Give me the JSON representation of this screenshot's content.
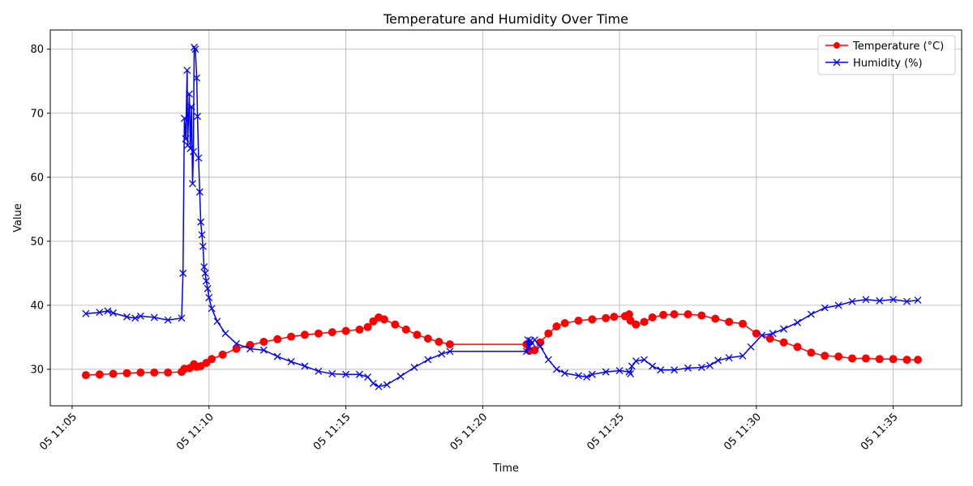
{
  "chart_data": {
    "type": "line",
    "title": "Temperature and Humidity Over Time",
    "xlabel": "Time",
    "ylabel": "Value",
    "x_unit": "minutes after 11:00 on day 05",
    "xlim": [
      4.2,
      37.5
    ],
    "ylim": [
      24.3,
      83.0
    ],
    "x_ticks": [
      {
        "value": 5,
        "label": "05 11:05"
      },
      {
        "value": 10,
        "label": "05 11:10"
      },
      {
        "value": 15,
        "label": "05 11:15"
      },
      {
        "value": 20,
        "label": "05 11:20"
      },
      {
        "value": 25,
        "label": "05 11:25"
      },
      {
        "value": 30,
        "label": "05 11:30"
      },
      {
        "value": 35,
        "label": "05 11:35"
      }
    ],
    "y_ticks": [
      30,
      40,
      50,
      60,
      70,
      80
    ],
    "grid": true,
    "legend_position": "top-right",
    "series": [
      {
        "name": "Temperature (°C)",
        "color": "#ff0000",
        "marker": "circle",
        "points": [
          [
            5.5,
            29.1
          ],
          [
            6.0,
            29.2
          ],
          [
            6.5,
            29.3
          ],
          [
            7.0,
            29.4
          ],
          [
            7.5,
            29.5
          ],
          [
            8.0,
            29.5
          ],
          [
            8.5,
            29.5
          ],
          [
            9.0,
            29.6
          ],
          [
            9.1,
            30.1
          ],
          [
            9.3,
            30.2
          ],
          [
            9.45,
            30.8
          ],
          [
            9.55,
            30.4
          ],
          [
            9.7,
            30.5
          ],
          [
            9.9,
            31.0
          ],
          [
            10.1,
            31.6
          ],
          [
            10.5,
            32.3
          ],
          [
            11.0,
            33.2
          ],
          [
            11.5,
            33.8
          ],
          [
            12.0,
            34.3
          ],
          [
            12.5,
            34.7
          ],
          [
            13.0,
            35.1
          ],
          [
            13.5,
            35.4
          ],
          [
            14.0,
            35.6
          ],
          [
            14.5,
            35.8
          ],
          [
            15.0,
            36.0
          ],
          [
            15.5,
            36.2
          ],
          [
            15.8,
            36.6
          ],
          [
            16.0,
            37.5
          ],
          [
            16.2,
            38.1
          ],
          [
            16.4,
            37.8
          ],
          [
            16.8,
            37.0
          ],
          [
            17.2,
            36.2
          ],
          [
            17.6,
            35.4
          ],
          [
            18.0,
            34.8
          ],
          [
            18.4,
            34.3
          ],
          [
            18.8,
            33.9
          ],
          [
            21.6,
            33.9
          ],
          [
            21.7,
            32.9
          ],
          [
            21.9,
            33.0
          ],
          [
            22.1,
            34.2
          ],
          [
            22.4,
            35.6
          ],
          [
            22.7,
            36.7
          ],
          [
            23.0,
            37.2
          ],
          [
            23.5,
            37.6
          ],
          [
            24.0,
            37.8
          ],
          [
            24.5,
            38.0
          ],
          [
            24.8,
            38.2
          ],
          [
            25.2,
            38.3
          ],
          [
            25.35,
            38.6
          ],
          [
            25.4,
            37.6
          ],
          [
            25.6,
            37.0
          ],
          [
            25.9,
            37.4
          ],
          [
            26.2,
            38.1
          ],
          [
            26.6,
            38.5
          ],
          [
            27.0,
            38.6
          ],
          [
            27.5,
            38.6
          ],
          [
            28.0,
            38.4
          ],
          [
            28.5,
            37.9
          ],
          [
            29.0,
            37.4
          ],
          [
            29.5,
            37.1
          ],
          [
            30.0,
            35.6
          ],
          [
            30.5,
            34.8
          ],
          [
            31.0,
            34.2
          ],
          [
            31.5,
            33.5
          ],
          [
            32.0,
            32.6
          ],
          [
            32.5,
            32.1
          ],
          [
            33.0,
            32.0
          ],
          [
            33.5,
            31.7
          ],
          [
            34.0,
            31.7
          ],
          [
            34.5,
            31.6
          ],
          [
            35.0,
            31.6
          ],
          [
            35.5,
            31.5
          ],
          [
            35.9,
            31.5
          ]
        ]
      },
      {
        "name": "Humidity (%)",
        "color": "#0000ff",
        "marker": "x",
        "points": [
          [
            5.5,
            38.7
          ],
          [
            6.0,
            38.9
          ],
          [
            6.3,
            39.1
          ],
          [
            6.5,
            38.8
          ],
          [
            7.0,
            38.2
          ],
          [
            7.3,
            38.0
          ],
          [
            7.5,
            38.3
          ],
          [
            8.0,
            38.1
          ],
          [
            8.5,
            37.7
          ],
          [
            9.0,
            38.0
          ],
          [
            9.05,
            45.0
          ],
          [
            9.1,
            69.2
          ],
          [
            9.15,
            66.0
          ],
          [
            9.2,
            76.7
          ],
          [
            9.22,
            65.0
          ],
          [
            9.28,
            73.0
          ],
          [
            9.32,
            64.5
          ],
          [
            9.36,
            71.0
          ],
          [
            9.4,
            59.0
          ],
          [
            9.43,
            64.0
          ],
          [
            9.46,
            80.3
          ],
          [
            9.5,
            80.0
          ],
          [
            9.55,
            75.5
          ],
          [
            9.58,
            69.5
          ],
          [
            9.62,
            63.0
          ],
          [
            9.66,
            57.7
          ],
          [
            9.7,
            53.0
          ],
          [
            9.74,
            51.0
          ],
          [
            9.78,
            49.2
          ],
          [
            9.82,
            46.0
          ],
          [
            9.86,
            45.0
          ],
          [
            9.9,
            43.8
          ],
          [
            9.95,
            42.6
          ],
          [
            10.0,
            41.2
          ],
          [
            10.1,
            39.5
          ],
          [
            10.3,
            37.5
          ],
          [
            10.6,
            35.6
          ],
          [
            11.0,
            34.0
          ],
          [
            11.5,
            33.2
          ],
          [
            12.0,
            33.0
          ],
          [
            12.5,
            32.0
          ],
          [
            13.0,
            31.2
          ],
          [
            13.5,
            30.5
          ],
          [
            14.0,
            29.7
          ],
          [
            14.5,
            29.3
          ],
          [
            15.0,
            29.2
          ],
          [
            15.5,
            29.2
          ],
          [
            15.8,
            28.8
          ],
          [
            16.0,
            27.8
          ],
          [
            16.2,
            27.3
          ],
          [
            16.5,
            27.6
          ],
          [
            17.0,
            28.9
          ],
          [
            17.5,
            30.3
          ],
          [
            18.0,
            31.5
          ],
          [
            18.5,
            32.4
          ],
          [
            18.8,
            32.8
          ],
          [
            21.6,
            32.8
          ],
          [
            21.65,
            34.6
          ],
          [
            21.7,
            33.5
          ],
          [
            21.75,
            34.5
          ],
          [
            21.8,
            34.1
          ],
          [
            21.9,
            34.6
          ],
          [
            22.1,
            33.6
          ],
          [
            22.4,
            31.5
          ],
          [
            22.7,
            30.0
          ],
          [
            23.0,
            29.4
          ],
          [
            23.5,
            29.0
          ],
          [
            23.8,
            28.8
          ],
          [
            24.0,
            29.2
          ],
          [
            24.5,
            29.6
          ],
          [
            25.0,
            29.8
          ],
          [
            25.35,
            29.6
          ],
          [
            25.4,
            29.3
          ],
          [
            25.45,
            30.5
          ],
          [
            25.6,
            31.3
          ],
          [
            25.9,
            31.5
          ],
          [
            26.2,
            30.5
          ],
          [
            26.5,
            29.9
          ],
          [
            27.0,
            29.9
          ],
          [
            27.5,
            30.2
          ],
          [
            28.0,
            30.3
          ],
          [
            28.3,
            30.6
          ],
          [
            28.6,
            31.4
          ],
          [
            29.0,
            31.8
          ],
          [
            29.5,
            32.1
          ],
          [
            29.8,
            33.5
          ],
          [
            30.2,
            35.3
          ],
          [
            30.6,
            35.6
          ],
          [
            31.0,
            36.3
          ],
          [
            31.5,
            37.3
          ],
          [
            32.0,
            38.6
          ],
          [
            32.5,
            39.6
          ],
          [
            33.0,
            40.0
          ],
          [
            33.5,
            40.6
          ],
          [
            34.0,
            40.9
          ],
          [
            34.5,
            40.7
          ],
          [
            35.0,
            40.9
          ],
          [
            35.5,
            40.6
          ],
          [
            35.9,
            40.8
          ]
        ]
      }
    ]
  }
}
